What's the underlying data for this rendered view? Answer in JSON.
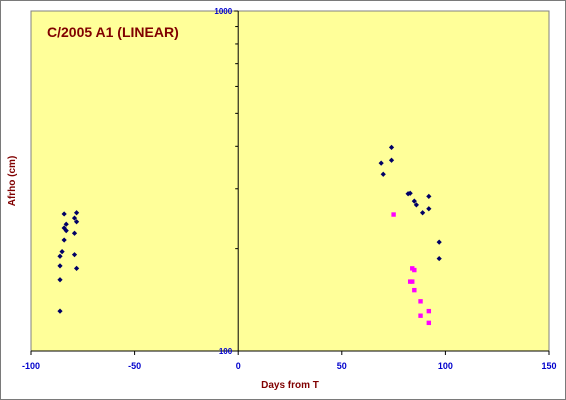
{
  "chart_data": {
    "type": "scatter",
    "title": "C/2005 A1 (LINEAR)",
    "xlabel": "Days from T",
    "ylabel": "Afrho (cm)",
    "xlim": [
      -100,
      150
    ],
    "ylim": [
      100,
      1000
    ],
    "yscale": "log",
    "x_ticks": [
      -100,
      -50,
      0,
      50,
      100,
      150
    ],
    "x_tick_labels": [
      "-100",
      "-50",
      "0",
      "50",
      "100",
      "150"
    ],
    "y_ticks": [
      100,
      1000
    ],
    "y_tick_labels": [
      "100",
      "1000"
    ],
    "grid": false,
    "legend": "none",
    "colors": {
      "plot_background": "#ffff99",
      "series_1": "#000066",
      "series_2": "#ff00ff",
      "title": "#800000",
      "tick_labels": "#0000cc"
    },
    "series": [
      {
        "marker": "diamond",
        "color": "#000066",
        "points": [
          [
            -84,
            253
          ],
          [
            -83,
            236
          ],
          [
            -84,
            230
          ],
          [
            -83,
            226
          ],
          [
            -84,
            212
          ],
          [
            -85,
            196
          ],
          [
            -86,
            190
          ],
          [
            -86,
            178
          ],
          [
            -86,
            162
          ],
          [
            -86,
            131
          ],
          [
            -78,
            255
          ],
          [
            -79,
            246
          ],
          [
            -78,
            240
          ],
          [
            -79,
            222
          ],
          [
            -79,
            192
          ],
          [
            -78,
            175
          ],
          [
            69,
            357
          ],
          [
            70,
            331
          ],
          [
            74,
            397
          ],
          [
            74,
            364
          ],
          [
            82,
            290
          ],
          [
            83,
            291
          ],
          [
            85,
            276
          ],
          [
            86,
            269
          ],
          [
            89,
            255
          ],
          [
            92,
            285
          ],
          [
            92,
            262
          ],
          [
            97,
            209
          ],
          [
            97,
            187
          ]
        ]
      },
      {
        "marker": "square",
        "color": "#ff00ff",
        "points": [
          [
            75,
            252
          ],
          [
            84,
            175
          ],
          [
            85,
            173
          ],
          [
            83,
            160
          ],
          [
            84,
            160
          ],
          [
            85,
            151
          ],
          [
            88,
            140
          ],
          [
            88,
            127
          ],
          [
            92,
            131
          ],
          [
            92,
            121
          ]
        ]
      }
    ]
  }
}
